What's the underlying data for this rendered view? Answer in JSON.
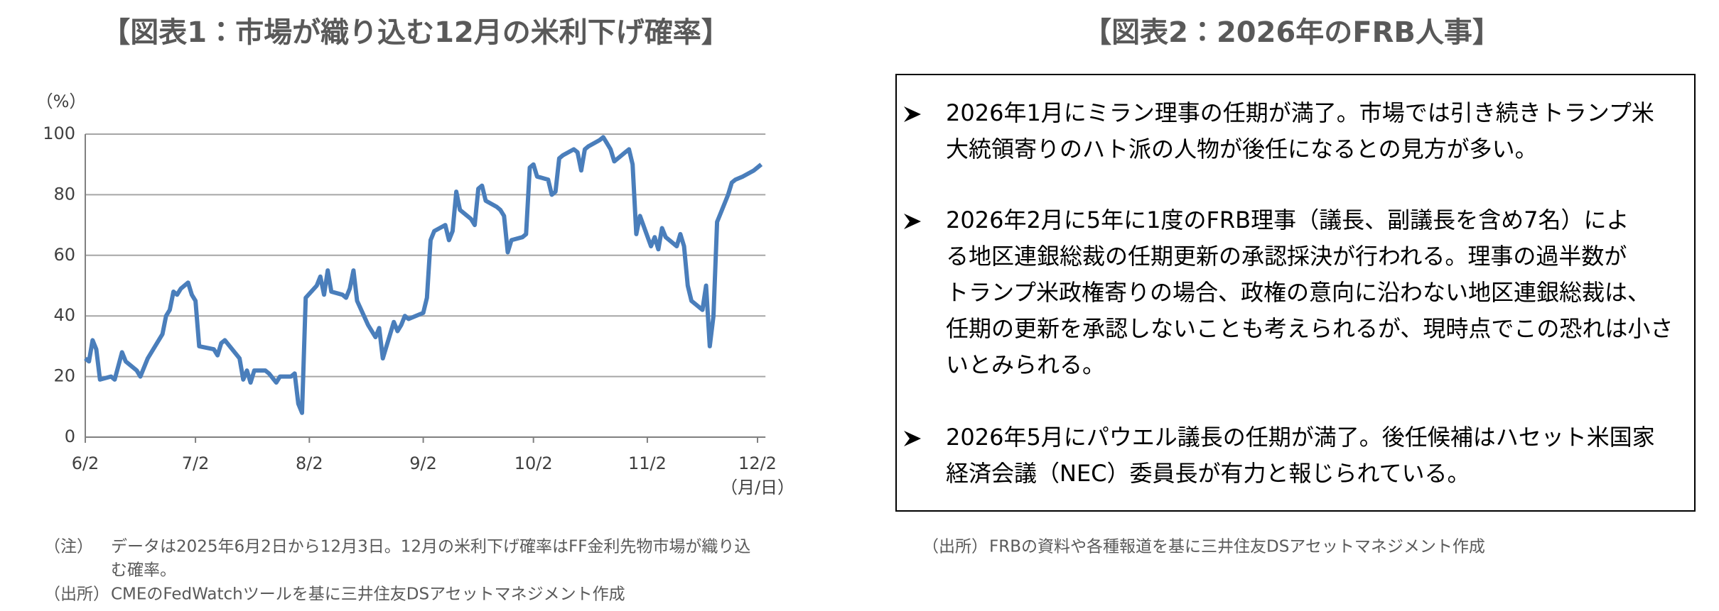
{
  "chart_data": {
    "type": "line",
    "title": "【図表1：市場が織り込む12月の米利下げ確率】",
    "y_label": "（%）",
    "x_label": "（月/日）",
    "color": "#4a7ebb",
    "ylim": [
      0,
      100
    ],
    "yticks": [
      0,
      20,
      40,
      60,
      80,
      100
    ],
    "grid": true,
    "xticks": [
      "6/2",
      "7/2",
      "8/2",
      "9/2",
      "10/2",
      "11/2",
      "12/2"
    ],
    "x": [
      "6/2",
      "6/3",
      "6/4",
      "6/5",
      "6/6",
      "6/9",
      "6/10",
      "6/12",
      "6/13",
      "6/16",
      "6/17",
      "6/19",
      "6/23",
      "6/24",
      "6/25",
      "6/26",
      "6/27",
      "6/28",
      "6/30",
      "7/1",
      "7/2",
      "7/3",
      "7/7",
      "7/8",
      "7/9",
      "7/10",
      "7/14",
      "7/15",
      "7/16",
      "7/17",
      "7/18",
      "7/21",
      "7/22",
      "7/24",
      "7/25",
      "7/28",
      "7/29",
      "7/30",
      "7/31",
      "8/1",
      "8/4",
      "8/5",
      "8/6",
      "8/7",
      "8/8",
      "8/11",
      "8/12",
      "8/13",
      "8/14",
      "8/15",
      "8/18",
      "8/19",
      "8/20",
      "8/21",
      "8/22",
      "8/25",
      "8/26",
      "8/27",
      "8/28",
      "8/29",
      "9/2",
      "9/3",
      "9/4",
      "9/5",
      "9/8",
      "9/9",
      "9/10",
      "9/11",
      "9/12",
      "9/15",
      "9/16",
      "9/17",
      "9/18",
      "9/19",
      "9/22",
      "9/23",
      "9/24",
      "9/25",
      "9/26",
      "9/29",
      "9/30",
      "10/1",
      "10/2",
      "10/3",
      "10/6",
      "10/7",
      "10/8",
      "10/9",
      "10/10",
      "10/13",
      "10/14",
      "10/15",
      "10/16",
      "10/17",
      "10/20",
      "10/21",
      "10/22",
      "10/23",
      "10/24",
      "10/27",
      "10/28",
      "10/29",
      "10/30",
      "10/31",
      "11/3",
      "11/4",
      "11/5",
      "11/6",
      "11/7",
      "11/10",
      "11/11",
      "11/12",
      "11/13",
      "11/14",
      "11/17",
      "11/18",
      "11/19",
      "11/20",
      "11/21",
      "11/24",
      "11/25",
      "11/26",
      "11/28",
      "12/1",
      "12/2",
      "12/3"
    ],
    "values": [
      26,
      25,
      32,
      29,
      19,
      20,
      19,
      28,
      25,
      22,
      20,
      26,
      34,
      40,
      42,
      48,
      47,
      49,
      51,
      47,
      45,
      30,
      29,
      27,
      31,
      32,
      26,
      19,
      22,
      18,
      22,
      22,
      21,
      18,
      20,
      20,
      21,
      11,
      8,
      46,
      50,
      53,
      47,
      55,
      48,
      47,
      46,
      49,
      55,
      45,
      37,
      35,
      33,
      36,
      26,
      38,
      35,
      37,
      40,
      39,
      41,
      46,
      65,
      68,
      70,
      65,
      68,
      81,
      75,
      72,
      70,
      82,
      83,
      78,
      76,
      75,
      73,
      61,
      65,
      66,
      67,
      89,
      90,
      86,
      85,
      80,
      81,
      92,
      93,
      95,
      94,
      88,
      95,
      96,
      98,
      99,
      97,
      95,
      91,
      94,
      95,
      90,
      67,
      73,
      63,
      66,
      62,
      69,
      66,
      63,
      67,
      63,
      50,
      45,
      42,
      50,
      30,
      40,
      71,
      80,
      84,
      85,
      86,
      88,
      89,
      90
    ]
  },
  "notes": {
    "note_label": "（注）",
    "note_lines": [
      "データは2025年6月2日から12月3日。12月の米利下げ確率はFF金利先物市場が織り込",
      "む確率。"
    ],
    "source_label": "（出所）",
    "source": "CMEのFedWatchツールを基に三井住友DSアセットマネジメント作成"
  },
  "panel": {
    "title": "【図表2：2026年のFRB人事】",
    "bullets": [
      [
        "2026年1月にミラン理事の任期が満了。市場では引き続きトランプ米",
        "大統領寄りのハト派の人物が後任になるとの見方が多い。"
      ],
      [
        "2026年2月に5年に1度のFRB理事（議長、副議長を含め7名）によ",
        "る地区連銀総裁の任期更新の承認採決が行われる。理事の過半数が",
        "トランプ米政権寄りの場合、政権の意向に沿わない地区連銀総裁は、",
        "任期の更新を承認しないことも考えられるが、現時点でこの恐れは小さ",
        "いとみられる。"
      ],
      [
        "2026年5月にパウエル議長の任期が満了。後任候補はハセット米国家",
        "経済会議（NEC）委員長が有力と報じられている。"
      ]
    ],
    "source_label": "（出所）",
    "source": "FRBの資料や各種報道を基に三井住友DSアセットマネジメント作成"
  }
}
